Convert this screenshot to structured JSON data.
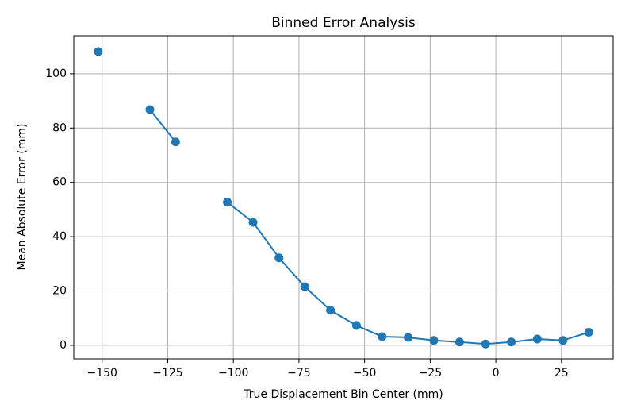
{
  "chart_data": {
    "type": "line",
    "title": "Binned Error Analysis",
    "xlabel": "True Displacement Bin Center (mm)",
    "ylabel": "Mean Absolute Error (mm)",
    "x": [
      -151.5,
      -141.7,
      -131.8,
      -122.0,
      -112.2,
      -102.3,
      -92.5,
      -82.6,
      -72.8,
      -63.0,
      -53.1,
      -43.3,
      -33.4,
      -23.6,
      -13.8,
      -3.9,
      5.9,
      15.8,
      25.6,
      35.4
    ],
    "values": [
      108.2,
      null,
      86.8,
      74.9,
      null,
      52.7,
      45.3,
      32.2,
      21.6,
      12.9,
      7.3,
      3.2,
      2.9,
      1.8,
      1.2,
      0.5,
      1.2,
      2.3,
      1.8,
      4.8
    ],
    "color": "#1f77b4",
    "xlim": [
      -160.8,
      44.7
    ],
    "ylim": [
      -5,
      114
    ],
    "xticks": [
      {
        "value": -150,
        "label": "−150"
      },
      {
        "value": -125,
        "label": "−125"
      },
      {
        "value": -100,
        "label": "−100"
      },
      {
        "value": -75,
        "label": "−75"
      },
      {
        "value": -50,
        "label": "−50"
      },
      {
        "value": -25,
        "label": "−25"
      },
      0,
      25
    ],
    "yticks": [
      0,
      20,
      40,
      60,
      80,
      100
    ],
    "grid": true
  }
}
